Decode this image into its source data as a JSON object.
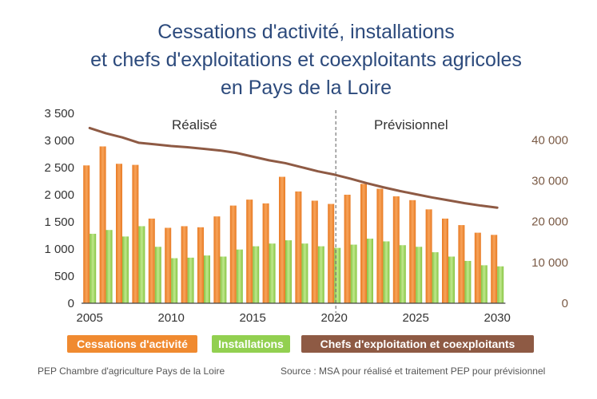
{
  "chart_data": {
    "type": "bar",
    "title_lines": [
      "Cessations d'activité, installations",
      "et chefs d'exploitations et coexploitants agricoles",
      "en Pays de la Loire"
    ],
    "x": [
      2005,
      2006,
      2007,
      2008,
      2009,
      2010,
      2011,
      2012,
      2013,
      2014,
      2015,
      2016,
      2017,
      2018,
      2019,
      2020,
      2021,
      2022,
      2023,
      2024,
      2025,
      2026,
      2027,
      2028,
      2029,
      2030
    ],
    "x_ticks": [
      2005,
      2010,
      2015,
      2020,
      2025,
      2030
    ],
    "x_tick_labels": [
      "2005",
      "2010",
      "2015",
      "2020",
      "2025",
      "2030"
    ],
    "y_left": {
      "range": [
        0,
        3500
      ],
      "ticks": [
        0,
        500,
        1000,
        1500,
        2000,
        2500,
        3000,
        3500
      ],
      "tick_labels": [
        "0",
        "500",
        "1 000",
        "1 500",
        "2 000",
        "2 500",
        "3 000",
        "3 500"
      ]
    },
    "y_right": {
      "range": [
        0,
        46500
      ],
      "ticks": [
        0,
        10000,
        20000,
        30000,
        40000
      ],
      "tick_labels": [
        "0",
        "10 000",
        "20 000",
        "30 000",
        "40 000"
      ]
    },
    "series": [
      {
        "name": "Cessations d'activité",
        "kind": "bar",
        "axis": "left",
        "color": "#f08a30",
        "values": [
          2540,
          2890,
          2570,
          2550,
          1560,
          1390,
          1420,
          1400,
          1600,
          1800,
          1910,
          1840,
          2330,
          2060,
          1890,
          1830,
          2000,
          2200,
          2110,
          1970,
          1900,
          1730,
          1560,
          1440,
          1300,
          1260
        ]
      },
      {
        "name": "Installations",
        "kind": "bar",
        "axis": "left",
        "color": "#92d050",
        "values": [
          1280,
          1350,
          1230,
          1420,
          1040,
          830,
          840,
          880,
          860,
          990,
          1050,
          1100,
          1160,
          1100,
          1050,
          1020,
          1080,
          1190,
          1140,
          1070,
          1040,
          940,
          860,
          780,
          700,
          680
        ]
      },
      {
        "name": "Chefs d'exploitation et coexploitants",
        "kind": "line",
        "axis": "right",
        "color": "#8e5a44",
        "values": [
          42900,
          41600,
          40600,
          39300,
          38900,
          38500,
          38200,
          37800,
          37400,
          36800,
          35900,
          35000,
          34300,
          33300,
          32300,
          31500,
          30500,
          29400,
          28400,
          27500,
          26700,
          25900,
          25200,
          24500,
          23900,
          23400
        ]
      }
    ],
    "split_year": 2020,
    "annotations": [
      "Réalisé",
      "Prévisionnel"
    ],
    "legend": [
      {
        "label": "Cessations d'activité",
        "color": "#f08a30"
      },
      {
        "label": "Installations",
        "color": "#92d050"
      },
      {
        "label": "Chefs d'exploitation et coexploitants",
        "color": "#8e5a44"
      }
    ],
    "footer_left": "PEP Chambre d'agriculture Pays de la Loire",
    "footer_right": "Source : MSA pour réalisé et traitement PEP pour prévisionnel",
    "grid": false
  }
}
